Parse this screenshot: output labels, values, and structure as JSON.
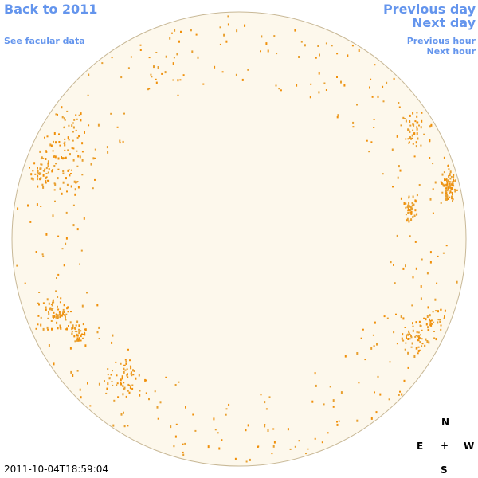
{
  "navigation": {
    "back": "Back to 2011",
    "facular_data": "See facular data",
    "previous_day": "Previous day",
    "next_day": "Next day",
    "previous_hour": "Previous hour",
    "next_hour": "Next hour"
  },
  "timestamp": "2011-10-04T18:59:04",
  "compass": {
    "north": "N",
    "east": "E",
    "center": "+",
    "west": "W",
    "south": "S"
  }
}
